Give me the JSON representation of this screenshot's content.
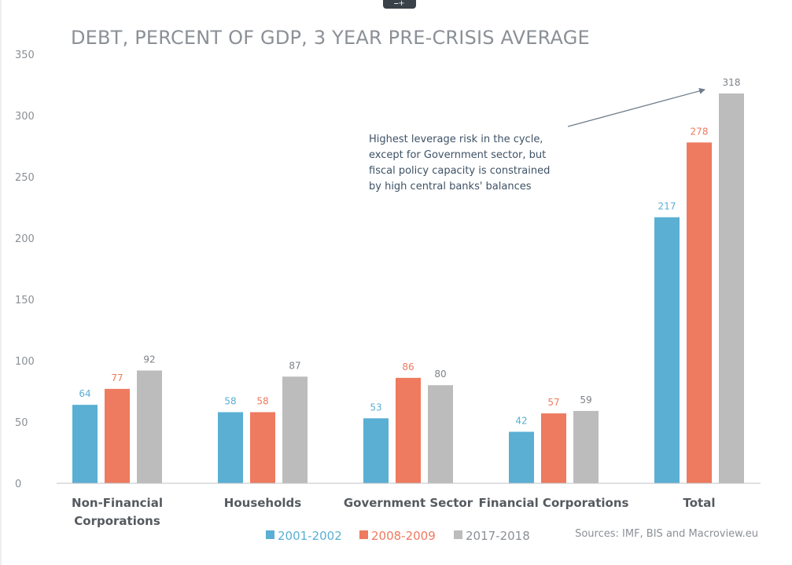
{
  "chart_data": {
    "type": "bar",
    "title": "DEBT, PERCENT OF GDP, 3 YEAR PRE-CRISIS AVERAGE",
    "categories": [
      [
        "Non-Financial",
        "Corporations"
      ],
      [
        "Households"
      ],
      [
        "Government Sector"
      ],
      [
        "Financial Corporations"
      ],
      [
        "Total"
      ]
    ],
    "series": [
      {
        "name": "2001-2002",
        "color": "#5aafd3",
        "values": [
          64,
          58,
          53,
          42,
          217
        ]
      },
      {
        "name": "2008-2009",
        "color": "#ee7a5f",
        "values": [
          77,
          58,
          86,
          57,
          278
        ]
      },
      {
        "name": "2017-2018",
        "color": "#bcbcbc",
        "values": [
          92,
          87,
          80,
          59,
          318
        ]
      }
    ],
    "ylim": [
      0,
      350
    ],
    "yticks": [
      0,
      50,
      100,
      150,
      200,
      250,
      300,
      350
    ],
    "grid": false,
    "legend_position": "bottom",
    "annotation": {
      "lines": [
        "Highest leverage risk in the cycle,",
        "except for Government sector, but",
        "fiscal policy capacity is constrained",
        "by high central banks' balances"
      ],
      "arrow_target": "Total 2017-2018"
    },
    "source": "Sources: IMF, BIS and Macroview.eu"
  },
  "tab_glyph": "⎯+"
}
